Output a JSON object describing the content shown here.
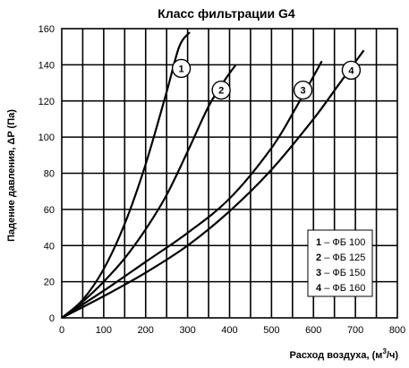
{
  "chart_data": {
    "type": "line",
    "title": "Класс  фильтрации G4",
    "xlabel_main": "Расход воздуха, (м",
    "xlabel_sup": "3",
    "xlabel_end": "/ч)",
    "ylabel": "Падение давления, ΔP (Па)",
    "xlim": [
      0,
      800
    ],
    "ylim": [
      0,
      160
    ],
    "xticks": [
      0,
      100,
      200,
      300,
      400,
      500,
      600,
      700,
      800
    ],
    "yticks": [
      0,
      20,
      40,
      60,
      80,
      100,
      120,
      140,
      160
    ],
    "grid": true,
    "legend": {
      "position": "bottom-right",
      "entries": [
        {
          "num": "1",
          "label": "ФБ 100"
        },
        {
          "num": "2",
          "label": "ФБ 125"
        },
        {
          "num": "3",
          "label": "ФБ 150"
        },
        {
          "num": "4",
          "label": "ФБ 160"
        }
      ]
    },
    "series": [
      {
        "marker": "1",
        "x": [
          0,
          50,
          100,
          150,
          200,
          250,
          280,
          305
        ],
        "y": [
          0,
          10,
          27,
          52,
          85,
          125,
          150,
          158
        ]
      },
      {
        "marker": "2",
        "x": [
          0,
          50,
          100,
          150,
          200,
          250,
          300,
          350,
          390,
          415
        ],
        "y": [
          0,
          9,
          20,
          33,
          49,
          68,
          92,
          117,
          132,
          140
        ]
      },
      {
        "marker": "3",
        "x": [
          0,
          100,
          200,
          300,
          400,
          500,
          560,
          620
        ],
        "y": [
          0,
          15,
          31,
          47,
          66,
          94,
          117,
          142
        ]
      },
      {
        "marker": "4",
        "x": [
          0,
          100,
          200,
          300,
          400,
          500,
          600,
          660,
          720
        ],
        "y": [
          0,
          12,
          25,
          40,
          59,
          82,
          110,
          129,
          148
        ]
      }
    ],
    "marker_positions": [
      {
        "num": "1",
        "x": 285,
        "y": 138
      },
      {
        "num": "2",
        "x": 380,
        "y": 126
      },
      {
        "num": "3",
        "x": 575,
        "y": 126
      },
      {
        "num": "4",
        "x": 690,
        "y": 137
      }
    ]
  }
}
